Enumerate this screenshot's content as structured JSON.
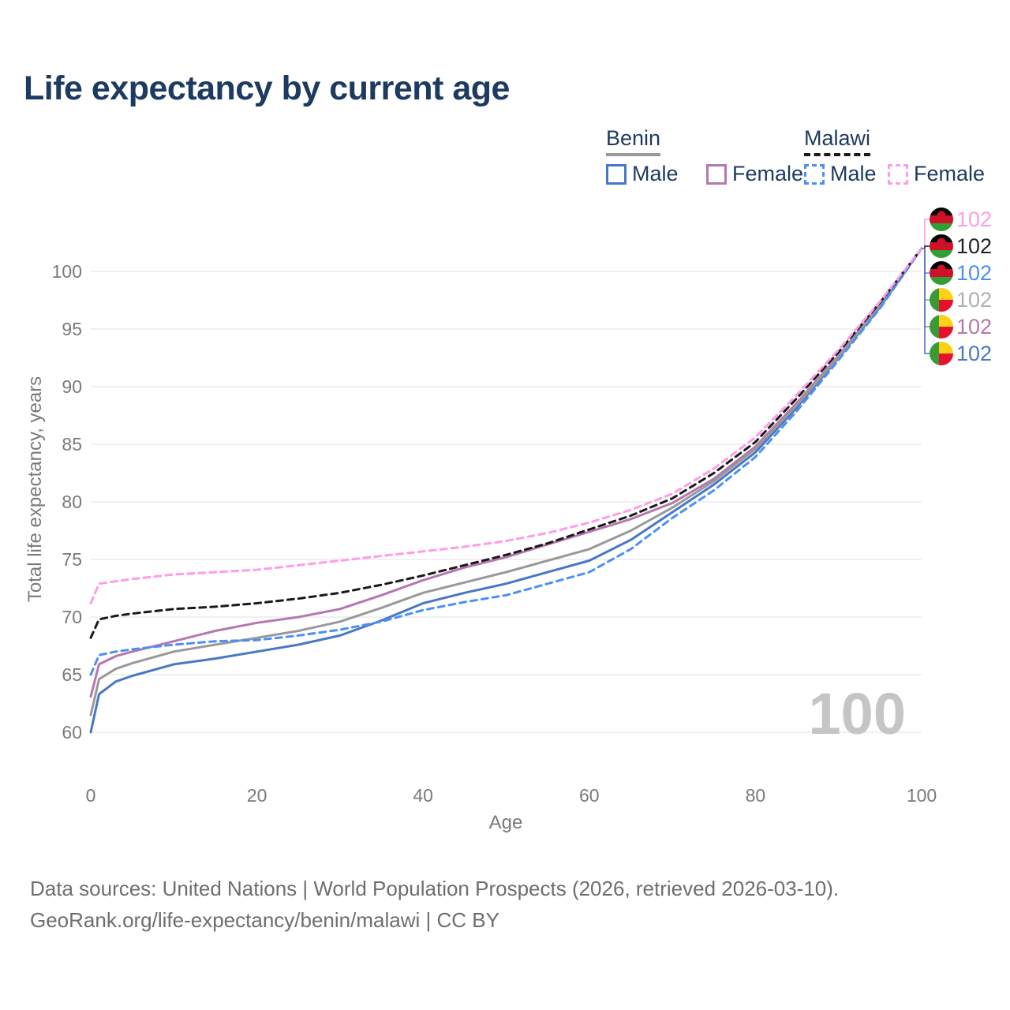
{
  "page": {
    "title": "Life expectancy by current age",
    "age_indicator": "100",
    "footer_line1": "Data sources: United Nations | World Population Prospects (2026, retrieved 2026-03-10).",
    "footer_line2": "GeoRank.org/life-expectancy/benin/malawi | CC BY"
  },
  "legend": {
    "groups": [
      {
        "label": "Benin",
        "line_style": "solid",
        "line_color": "#999999",
        "items": [
          {
            "label": "Male",
            "color": "#4878c4",
            "dash": false
          },
          {
            "label": "Female",
            "color": "#b577ad",
            "dash": false
          }
        ]
      },
      {
        "label": "Malawi",
        "line_style": "dashed",
        "line_color": "#1a1a1a",
        "items": [
          {
            "label": "Male",
            "color": "#4a90f5",
            "dash": true
          },
          {
            "label": "Female",
            "color": "#ff9ce6",
            "dash": true
          }
        ]
      }
    ]
  },
  "chart_data": {
    "type": "line",
    "title": "Life expectancy by current age",
    "xlabel": "Age",
    "ylabel": "Total life expectancy, years",
    "xlim": [
      0,
      100
    ],
    "ylim": [
      58.5,
      103
    ],
    "xticks": [
      0,
      20,
      40,
      60,
      80,
      100
    ],
    "yticks": [
      60,
      65,
      70,
      75,
      80,
      85,
      90,
      95,
      100
    ],
    "grid": "horizontal-only",
    "legend_position": "top-right",
    "x": [
      0,
      1,
      3,
      5,
      10,
      15,
      20,
      25,
      30,
      35,
      40,
      45,
      50,
      55,
      60,
      65,
      70,
      75,
      80,
      85,
      90,
      95,
      100
    ],
    "series": [
      {
        "id": "malawi-female",
        "country": "Malawi",
        "sex": "Female",
        "color": "#ff9ce6",
        "dash": true,
        "flag": "malawi",
        "end_label": "102",
        "end_label_color": "#ff9ce6",
        "values": [
          71.2,
          72.9,
          73.1,
          73.3,
          73.7,
          73.9,
          74.1,
          74.5,
          74.9,
          75.3,
          75.7,
          76.1,
          76.6,
          77.3,
          78.2,
          79.3,
          80.7,
          82.9,
          85.6,
          89.3,
          93.2,
          97.4,
          102
        ]
      },
      {
        "id": "malawi-total",
        "country": "Malawi",
        "sex": "Both",
        "color": "#1a1a1a",
        "dash": true,
        "flag": "malawi",
        "end_label": "102",
        "end_label_color": "#222222",
        "values": [
          68.2,
          69.8,
          70.1,
          70.3,
          70.7,
          70.9,
          71.2,
          71.6,
          72.1,
          72.8,
          73.6,
          74.5,
          75.4,
          76.4,
          77.6,
          78.8,
          80.3,
          82.5,
          85.2,
          89.0,
          93.0,
          97.3,
          102
        ]
      },
      {
        "id": "malawi-male",
        "country": "Malawi",
        "sex": "Male",
        "color": "#4a90f5",
        "dash": true,
        "flag": "malawi",
        "end_label": "102",
        "end_label_color": "#4a90f5",
        "values": [
          65.0,
          66.7,
          67.0,
          67.2,
          67.6,
          67.9,
          68.0,
          68.4,
          68.9,
          69.6,
          70.6,
          71.3,
          71.9,
          72.9,
          73.9,
          75.9,
          78.6,
          81.0,
          83.9,
          87.9,
          92.3,
          96.8,
          102
        ]
      },
      {
        "id": "benin-total",
        "country": "Benin",
        "sex": "Both",
        "color": "#999999",
        "dash": false,
        "flag": "benin",
        "end_label": "102",
        "end_label_color": "#b0b0b0",
        "values": [
          61.5,
          64.6,
          65.5,
          66.0,
          67.0,
          67.6,
          68.2,
          68.8,
          69.6,
          70.8,
          72.1,
          73.0,
          73.9,
          74.9,
          75.9,
          77.5,
          79.5,
          81.8,
          84.6,
          88.4,
          92.6,
          97.0,
          102
        ]
      },
      {
        "id": "benin-female",
        "country": "Benin",
        "sex": "Female",
        "color": "#b577ad",
        "dash": false,
        "flag": "benin",
        "end_label": "102",
        "end_label_color": "#b577ad",
        "values": [
          63.1,
          65.9,
          66.6,
          67.0,
          67.9,
          68.8,
          69.5,
          70.0,
          70.7,
          71.9,
          73.2,
          74.3,
          75.2,
          76.3,
          77.4,
          78.5,
          79.9,
          82.0,
          84.8,
          88.6,
          92.7,
          97.1,
          102
        ]
      },
      {
        "id": "benin-male",
        "country": "Benin",
        "sex": "Male",
        "color": "#4878c4",
        "dash": false,
        "flag": "benin",
        "end_label": "102",
        "end_label_color": "#4878c4",
        "values": [
          60.0,
          63.3,
          64.4,
          64.9,
          65.9,
          66.4,
          67.0,
          67.6,
          68.4,
          69.7,
          71.2,
          72.1,
          72.9,
          73.9,
          74.9,
          76.7,
          79.1,
          81.5,
          84.3,
          88.2,
          92.5,
          96.9,
          102
        ]
      }
    ],
    "flag_colors": {
      "malawi": {
        "black": "#000000",
        "red": "#ce1126",
        "green": "#339e35"
      },
      "benin": {
        "green": "#3a9a35",
        "yellow": "#fcd116",
        "red": "#e8112d"
      }
    },
    "gridline_color": "#ebebeb",
    "tick_color": "#7a7a7a"
  }
}
